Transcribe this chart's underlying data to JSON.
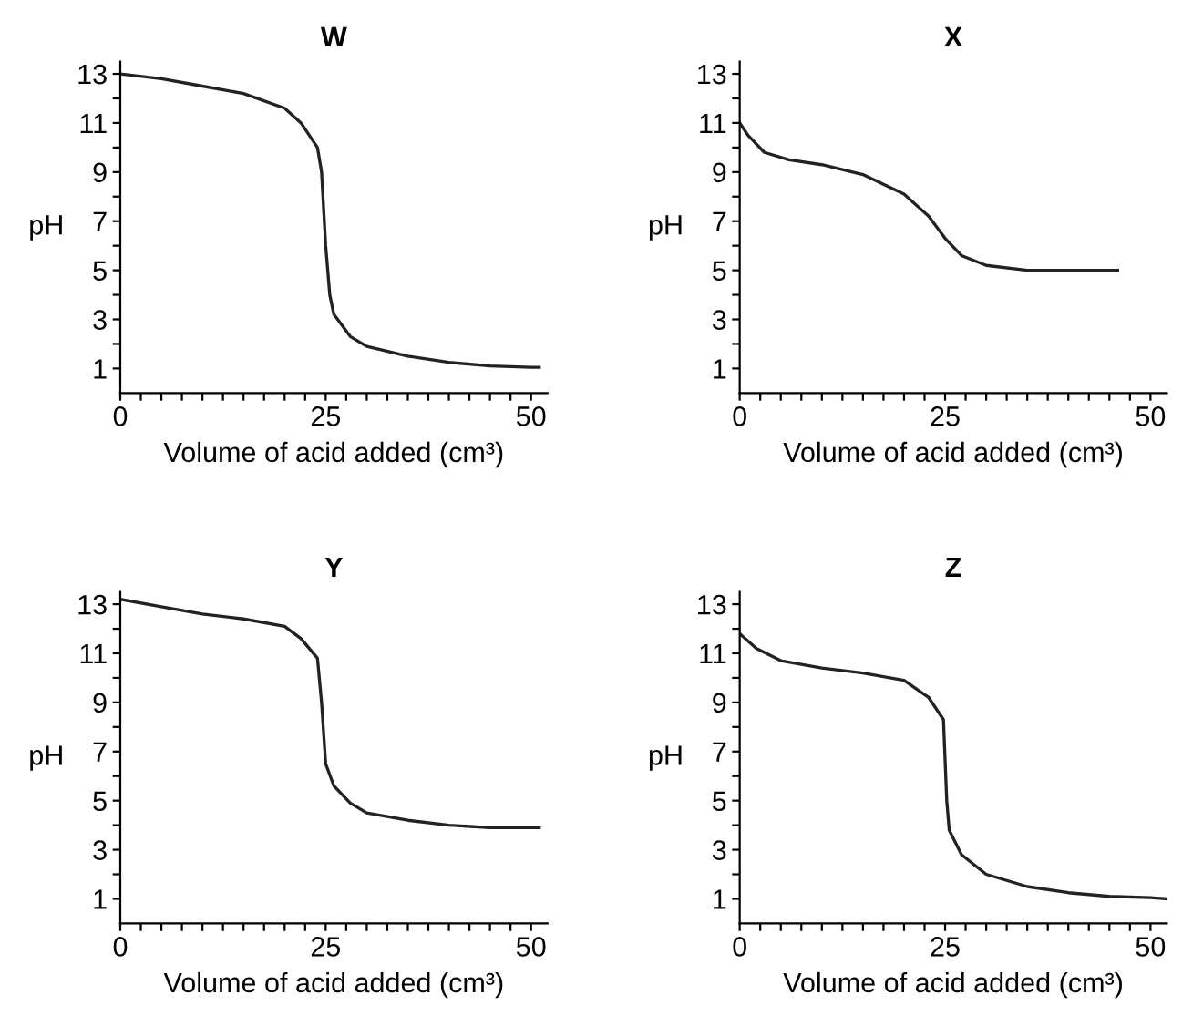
{
  "chart_data": [
    {
      "type": "line",
      "title": "W",
      "xlabel": "Volume of acid added (cm³)",
      "ylabel": "pH",
      "xlim": [
        0,
        52
      ],
      "ylim": [
        0,
        13.5
      ],
      "xticks": [
        0,
        {
          "value": 2.5,
          "label": null
        },
        {
          "value": 5,
          "label": null
        },
        {
          "value": 7.5,
          "label": null
        },
        {
          "value": 10,
          "label": null
        },
        {
          "value": 12.5,
          "label": null
        },
        {
          "value": 15,
          "label": null
        },
        {
          "value": 17.5,
          "label": null
        },
        {
          "value": 20,
          "label": null
        },
        {
          "value": 22.5,
          "label": null
        },
        25,
        {
          "value": 27.5,
          "label": null
        },
        {
          "value": 30,
          "label": null
        },
        {
          "value": 32.5,
          "label": null
        },
        {
          "value": 35,
          "label": null
        },
        {
          "value": 37.5,
          "label": null
        },
        {
          "value": 40,
          "label": null
        },
        {
          "value": 42.5,
          "label": null
        },
        {
          "value": 45,
          "label": null
        },
        {
          "value": 47.5,
          "label": null
        },
        50
      ],
      "yticks": [
        1,
        {
          "value": 2,
          "label": null
        },
        3,
        {
          "value": 4,
          "label": null
        },
        5,
        {
          "value": 6,
          "label": null
        },
        7,
        {
          "value": 8,
          "label": null
        },
        9,
        {
          "value": 10,
          "label": null
        },
        11,
        {
          "value": 12,
          "label": null
        },
        13
      ],
      "grid": false,
      "legend": false,
      "series": [
        {
          "color": "#222222",
          "x": [
            0,
            5,
            10,
            15,
            20,
            22,
            24,
            24.5,
            25,
            25.5,
            26,
            28,
            30,
            35,
            40,
            45,
            50,
            51
          ],
          "values": [
            13,
            12.8,
            12.5,
            12.2,
            11.6,
            11,
            10,
            9,
            6,
            4,
            3.2,
            2.3,
            1.9,
            1.5,
            1.25,
            1.1,
            1.05,
            1.05
          ]
        }
      ]
    },
    {
      "type": "line",
      "title": "X",
      "xlabel": "Volume of acid added (cm³)",
      "ylabel": "pH",
      "xlim": [
        0,
        52
      ],
      "ylim": [
        0,
        13.5
      ],
      "xticks": [
        0,
        {
          "value": 2.5,
          "label": null
        },
        {
          "value": 5,
          "label": null
        },
        {
          "value": 7.5,
          "label": null
        },
        {
          "value": 10,
          "label": null
        },
        {
          "value": 12.5,
          "label": null
        },
        {
          "value": 15,
          "label": null
        },
        {
          "value": 17.5,
          "label": null
        },
        {
          "value": 20,
          "label": null
        },
        {
          "value": 22.5,
          "label": null
        },
        25,
        {
          "value": 27.5,
          "label": null
        },
        {
          "value": 30,
          "label": null
        },
        {
          "value": 32.5,
          "label": null
        },
        {
          "value": 35,
          "label": null
        },
        {
          "value": 37.5,
          "label": null
        },
        {
          "value": 40,
          "label": null
        },
        {
          "value": 42.5,
          "label": null
        },
        {
          "value": 45,
          "label": null
        },
        {
          "value": 47.5,
          "label": null
        },
        50
      ],
      "yticks": [
        1,
        {
          "value": 2,
          "label": null
        },
        3,
        {
          "value": 4,
          "label": null
        },
        5,
        {
          "value": 6,
          "label": null
        },
        7,
        {
          "value": 8,
          "label": null
        },
        9,
        {
          "value": 10,
          "label": null
        },
        11,
        {
          "value": 12,
          "label": null
        },
        13
      ],
      "grid": false,
      "legend": false,
      "series": [
        {
          "color": "#222222",
          "x": [
            0,
            1,
            3,
            6,
            10,
            15,
            20,
            23,
            25,
            27,
            30,
            35,
            40,
            46
          ],
          "values": [
            11,
            10.5,
            9.8,
            9.5,
            9.3,
            8.9,
            8.1,
            7.2,
            6.3,
            5.6,
            5.2,
            5.0,
            5.0,
            5.0
          ]
        }
      ]
    },
    {
      "type": "line",
      "title": "Y",
      "xlabel": "Volume of acid added (cm³)",
      "ylabel": "pH",
      "xlim": [
        0,
        52
      ],
      "ylim": [
        0,
        13.5
      ],
      "xticks": [
        0,
        {
          "value": 2.5,
          "label": null
        },
        {
          "value": 5,
          "label": null
        },
        {
          "value": 7.5,
          "label": null
        },
        {
          "value": 10,
          "label": null
        },
        {
          "value": 12.5,
          "label": null
        },
        {
          "value": 15,
          "label": null
        },
        {
          "value": 17.5,
          "label": null
        },
        {
          "value": 20,
          "label": null
        },
        {
          "value": 22.5,
          "label": null
        },
        25,
        {
          "value": 27.5,
          "label": null
        },
        {
          "value": 30,
          "label": null
        },
        {
          "value": 32.5,
          "label": null
        },
        {
          "value": 35,
          "label": null
        },
        {
          "value": 37.5,
          "label": null
        },
        {
          "value": 40,
          "label": null
        },
        {
          "value": 42.5,
          "label": null
        },
        {
          "value": 45,
          "label": null
        },
        {
          "value": 47.5,
          "label": null
        },
        50
      ],
      "yticks": [
        1,
        {
          "value": 2,
          "label": null
        },
        3,
        {
          "value": 4,
          "label": null
        },
        5,
        {
          "value": 6,
          "label": null
        },
        7,
        {
          "value": 8,
          "label": null
        },
        9,
        {
          "value": 10,
          "label": null
        },
        11,
        {
          "value": 12,
          "label": null
        },
        13
      ],
      "grid": false,
      "legend": false,
      "series": [
        {
          "color": "#222222",
          "x": [
            0,
            5,
            10,
            15,
            20,
            22,
            24,
            24.5,
            25,
            26,
            28,
            30,
            35,
            40,
            45,
            51
          ],
          "values": [
            13.2,
            12.9,
            12.6,
            12.4,
            12.1,
            11.6,
            10.8,
            9,
            6.5,
            5.6,
            4.9,
            4.5,
            4.2,
            4.0,
            3.9,
            3.9
          ]
        }
      ]
    },
    {
      "type": "line",
      "title": "Z",
      "xlabel": "Volume of acid added (cm³)",
      "ylabel": "pH",
      "xlim": [
        0,
        52
      ],
      "ylim": [
        0,
        13.5
      ],
      "xticks": [
        0,
        {
          "value": 2.5,
          "label": null
        },
        {
          "value": 5,
          "label": null
        },
        {
          "value": 7.5,
          "label": null
        },
        {
          "value": 10,
          "label": null
        },
        {
          "value": 12.5,
          "label": null
        },
        {
          "value": 15,
          "label": null
        },
        {
          "value": 17.5,
          "label": null
        },
        {
          "value": 20,
          "label": null
        },
        {
          "value": 22.5,
          "label": null
        },
        25,
        {
          "value": 27.5,
          "label": null
        },
        {
          "value": 30,
          "label": null
        },
        {
          "value": 32.5,
          "label": null
        },
        {
          "value": 35,
          "label": null
        },
        {
          "value": 37.5,
          "label": null
        },
        {
          "value": 40,
          "label": null
        },
        {
          "value": 42.5,
          "label": null
        },
        {
          "value": 45,
          "label": null
        },
        {
          "value": 47.5,
          "label": null
        },
        50
      ],
      "yticks": [
        1,
        {
          "value": 2,
          "label": null
        },
        3,
        {
          "value": 4,
          "label": null
        },
        5,
        {
          "value": 6,
          "label": null
        },
        7,
        {
          "value": 8,
          "label": null
        },
        9,
        {
          "value": 10,
          "label": null
        },
        11,
        {
          "value": 12,
          "label": null
        },
        13
      ],
      "grid": false,
      "legend": false,
      "series": [
        {
          "color": "#222222",
          "x": [
            0,
            2,
            5,
            10,
            15,
            20,
            23,
            24.8,
            25.2,
            25.5,
            27,
            30,
            35,
            40,
            45,
            50,
            52
          ],
          "values": [
            11.8,
            11.2,
            10.7,
            10.4,
            10.2,
            9.9,
            9.2,
            8.3,
            5,
            3.8,
            2.8,
            2.0,
            1.5,
            1.25,
            1.1,
            1.05,
            1.0
          ]
        }
      ]
    }
  ]
}
